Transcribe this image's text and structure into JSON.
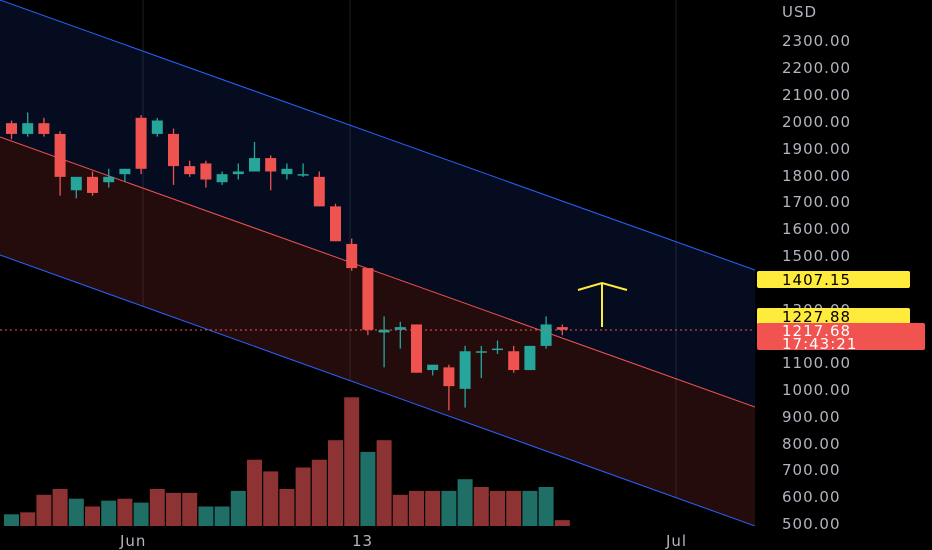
{
  "chart_data": {
    "type": "candlestick",
    "currency_label": "USD",
    "y_ticks": [
      "2300.00",
      "2200.00",
      "2100.00",
      "2000.00",
      "1900.00",
      "1800.00",
      "1700.00",
      "1600.00",
      "1500.00",
      "1300.00",
      "1100.00",
      "1000.00",
      "900.00",
      "800.00",
      "700.00",
      "600.00",
      "500.00"
    ],
    "x_ticks": [
      "Jun",
      "13",
      "Jul"
    ],
    "ylim": [
      480,
      2360
    ],
    "price_tags": [
      {
        "label": "1407.15",
        "value": 1407.15,
        "bg": "#ffeb3b",
        "style": "dark"
      },
      {
        "label": "1227.88",
        "value": 1227.88,
        "bg": "#ffeb3b",
        "style": "dark"
      }
    ],
    "last_price": {
      "label": "1217.68",
      "value": 1217.68,
      "countdown": "17:43:21",
      "bg": "#f05350"
    },
    "colors": {
      "up": "#26a69a",
      "down": "#ef5350",
      "channel_upper": "#2962ff",
      "channel_mid": "#ef5350",
      "arrow": "#ffeb3b"
    },
    "candles": [
      {
        "o": 1990,
        "h": 2000,
        "l": 1930,
        "c": 1950
      },
      {
        "o": 1950,
        "h": 2030,
        "l": 1940,
        "c": 1990
      },
      {
        "o": 1990,
        "h": 2010,
        "l": 1940,
        "c": 1950
      },
      {
        "o": 1950,
        "h": 1960,
        "l": 1720,
        "c": 1790
      },
      {
        "o": 1740,
        "h": 1790,
        "l": 1710,
        "c": 1790
      },
      {
        "o": 1790,
        "h": 1810,
        "l": 1720,
        "c": 1730
      },
      {
        "o": 1770,
        "h": 1820,
        "l": 1750,
        "c": 1790
      },
      {
        "o": 1800,
        "h": 1820,
        "l": 1770,
        "c": 1820
      },
      {
        "o": 2010,
        "h": 2020,
        "l": 1800,
        "c": 1820
      },
      {
        "o": 1950,
        "h": 2010,
        "l": 1940,
        "c": 2000
      },
      {
        "o": 1950,
        "h": 1970,
        "l": 1760,
        "c": 1830
      },
      {
        "o": 1830,
        "h": 1850,
        "l": 1790,
        "c": 1800
      },
      {
        "o": 1840,
        "h": 1850,
        "l": 1750,
        "c": 1780
      },
      {
        "o": 1770,
        "h": 1810,
        "l": 1760,
        "c": 1800
      },
      {
        "o": 1800,
        "h": 1840,
        "l": 1780,
        "c": 1810
      },
      {
        "o": 1810,
        "h": 1920,
        "l": 1810,
        "c": 1860
      },
      {
        "o": 1860,
        "h": 1870,
        "l": 1740,
        "c": 1810
      },
      {
        "o": 1800,
        "h": 1840,
        "l": 1780,
        "c": 1820
      },
      {
        "o": 1800,
        "h": 1840,
        "l": 1790,
        "c": 1800
      },
      {
        "o": 1790,
        "h": 1810,
        "l": 1680,
        "c": 1680
      },
      {
        "o": 1680,
        "h": 1690,
        "l": 1550,
        "c": 1550
      },
      {
        "o": 1540,
        "h": 1560,
        "l": 1440,
        "c": 1450
      },
      {
        "o": 1450,
        "h": 1450,
        "l": 1200,
        "c": 1220
      },
      {
        "o": 1210,
        "h": 1270,
        "l": 1080,
        "c": 1220
      },
      {
        "o": 1220,
        "h": 1250,
        "l": 1150,
        "c": 1230
      },
      {
        "o": 1240,
        "h": 1240,
        "l": 1060,
        "c": 1060
      },
      {
        "o": 1070,
        "h": 1080,
        "l": 1050,
        "c": 1090
      },
      {
        "o": 1080,
        "h": 1090,
        "l": 920,
        "c": 1010
      },
      {
        "o": 1000,
        "h": 1160,
        "l": 930,
        "c": 1140
      },
      {
        "o": 1140,
        "h": 1160,
        "l": 1040,
        "c": 1140
      },
      {
        "o": 1150,
        "h": 1180,
        "l": 1130,
        "c": 1150
      },
      {
        "o": 1140,
        "h": 1160,
        "l": 1060,
        "c": 1070
      },
      {
        "o": 1070,
        "h": 1160,
        "l": 1070,
        "c": 1160
      },
      {
        "o": 1160,
        "h": 1270,
        "l": 1150,
        "c": 1240
      },
      {
        "o": 1230,
        "h": 1240,
        "l": 1200,
        "c": 1220
      }
    ],
    "volume": [
      {
        "v": 30,
        "up": true
      },
      {
        "v": 35,
        "up": false
      },
      {
        "v": 80,
        "up": false
      },
      {
        "v": 95,
        "up": false
      },
      {
        "v": 70,
        "up": true
      },
      {
        "v": 50,
        "up": false
      },
      {
        "v": 65,
        "up": true
      },
      {
        "v": 70,
        "up": false
      },
      {
        "v": 60,
        "up": true
      },
      {
        "v": 95,
        "up": false
      },
      {
        "v": 85,
        "up": false
      },
      {
        "v": 85,
        "up": false
      },
      {
        "v": 50,
        "up": true
      },
      {
        "v": 50,
        "up": true
      },
      {
        "v": 90,
        "up": true
      },
      {
        "v": 170,
        "up": false
      },
      {
        "v": 140,
        "up": false
      },
      {
        "v": 95,
        "up": false
      },
      {
        "v": 150,
        "up": false
      },
      {
        "v": 170,
        "up": false
      },
      {
        "v": 220,
        "up": false
      },
      {
        "v": 330,
        "up": false
      },
      {
        "v": 190,
        "up": true
      },
      {
        "v": 220,
        "up": false
      },
      {
        "v": 80,
        "up": false
      },
      {
        "v": 90,
        "up": false
      },
      {
        "v": 90,
        "up": false
      },
      {
        "v": 90,
        "up": true
      },
      {
        "v": 120,
        "up": true
      },
      {
        "v": 100,
        "up": false
      },
      {
        "v": 90,
        "up": false
      },
      {
        "v": 90,
        "up": false
      },
      {
        "v": 90,
        "up": true
      },
      {
        "v": 100,
        "up": true
      },
      {
        "v": 15,
        "up": false
      }
    ]
  }
}
